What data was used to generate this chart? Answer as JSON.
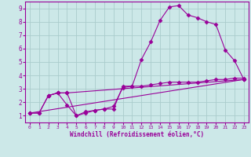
{
  "line1_x": [
    0,
    1,
    2,
    3,
    4,
    5,
    6,
    7,
    8,
    9,
    10,
    11,
    12,
    13,
    14,
    15,
    16,
    17,
    18,
    19,
    20,
    21,
    22,
    23
  ],
  "line1_y": [
    1.2,
    1.2,
    2.5,
    2.7,
    2.7,
    1.0,
    1.2,
    1.4,
    1.5,
    1.5,
    3.2,
    3.2,
    5.2,
    6.5,
    8.1,
    9.1,
    9.2,
    8.5,
    8.3,
    8.0,
    7.8,
    5.9,
    5.1,
    3.7
  ],
  "line2_x": [
    0,
    1,
    2,
    3,
    4,
    5,
    6,
    7,
    8,
    9,
    10,
    11,
    12,
    13,
    14,
    15,
    16,
    17,
    18,
    19,
    20,
    21,
    22,
    23
  ],
  "line2_y": [
    1.2,
    1.2,
    2.5,
    2.7,
    1.8,
    1.0,
    1.3,
    1.4,
    1.5,
    1.7,
    3.1,
    3.2,
    3.2,
    3.3,
    3.4,
    3.5,
    3.5,
    3.5,
    3.5,
    3.6,
    3.7,
    3.7,
    3.8,
    3.8
  ],
  "line3_x": [
    2,
    3,
    4,
    23
  ],
  "line3_y": [
    2.5,
    2.7,
    2.7,
    3.7
  ],
  "line4_x": [
    0,
    23
  ],
  "line4_y": [
    1.2,
    3.7
  ],
  "color": "#990099",
  "bg_color": "#cce8e8",
  "grid_color": "#aacccc",
  "xlabel": "Windchill (Refroidissement éolien,°C)",
  "xlim": [
    -0.5,
    23.5
  ],
  "ylim": [
    0.5,
    9.5
  ],
  "yticks": [
    1,
    2,
    3,
    4,
    5,
    6,
    7,
    8,
    9
  ],
  "xticks": [
    0,
    1,
    2,
    3,
    4,
    5,
    6,
    7,
    8,
    9,
    10,
    11,
    12,
    13,
    14,
    15,
    16,
    17,
    18,
    19,
    20,
    21,
    22,
    23
  ],
  "marker": "D",
  "markersize": 2.5,
  "linewidth": 0.8
}
